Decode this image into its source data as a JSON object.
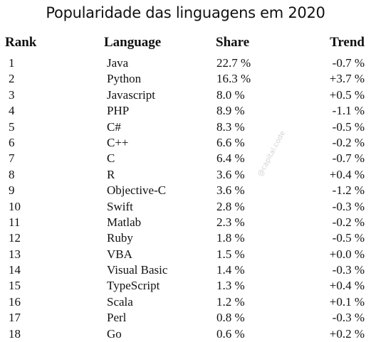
{
  "title": "Popularidade das linguagens em 2020",
  "watermark": "@capital.code",
  "chart_data": {
    "type": "table",
    "title": "Popularidade das linguagens em 2020",
    "columns": [
      "Rank",
      "Language",
      "Share",
      "Trend"
    ],
    "rows": [
      {
        "rank": "1",
        "language": "Java",
        "share": "22.7 %",
        "trend": "-0.7 %"
      },
      {
        "rank": "2",
        "language": "Python",
        "share": "16.3 %",
        "trend": "+3.7 %"
      },
      {
        "rank": "3",
        "language": "Javascript",
        "share": "8.0 %",
        "trend": "+0.5 %"
      },
      {
        "rank": "4",
        "language": "PHP",
        "share": "8.9 %",
        "trend": "-1.1 %"
      },
      {
        "rank": "5",
        "language": "C#",
        "share": "8.3 %",
        "trend": "-0.5 %"
      },
      {
        "rank": "6",
        "language": "C++",
        "share": "6.6 %",
        "trend": "-0.2 %"
      },
      {
        "rank": "7",
        "language": "C",
        "share": "6.4 %",
        "trend": "-0.7 %"
      },
      {
        "rank": "8",
        "language": "R",
        "share": "3.6 %",
        "trend": "+0.4 %"
      },
      {
        "rank": "9",
        "language": "Objective-C",
        "share": "3.6 %",
        "trend": "-1.2 %"
      },
      {
        "rank": "10",
        "language": "Swift",
        "share": "2.8 %",
        "trend": "-0.3 %"
      },
      {
        "rank": "11",
        "language": "Matlab",
        "share": "2.3 %",
        "trend": "-0.2 %"
      },
      {
        "rank": "12",
        "language": "Ruby",
        "share": "1.8 %",
        "trend": "-0.5 %"
      },
      {
        "rank": "13",
        "language": "VBA",
        "share": "1.5 %",
        "trend": "+0.0 %"
      },
      {
        "rank": "14",
        "language": "Visual Basic",
        "share": "1.4 %",
        "trend": "-0.3 %"
      },
      {
        "rank": "15",
        "language": "TypeScript",
        "share": "1.3 %",
        "trend": "+0.4 %"
      },
      {
        "rank": "16",
        "language": "Scala",
        "share": "1.2 %",
        "trend": "+0.1 %"
      },
      {
        "rank": "17",
        "language": "Perl",
        "share": "0.8 %",
        "trend": "-0.3 %"
      },
      {
        "rank": "18",
        "language": "Go",
        "share": "0.6 %",
        "trend": "+0.2 %"
      }
    ]
  }
}
